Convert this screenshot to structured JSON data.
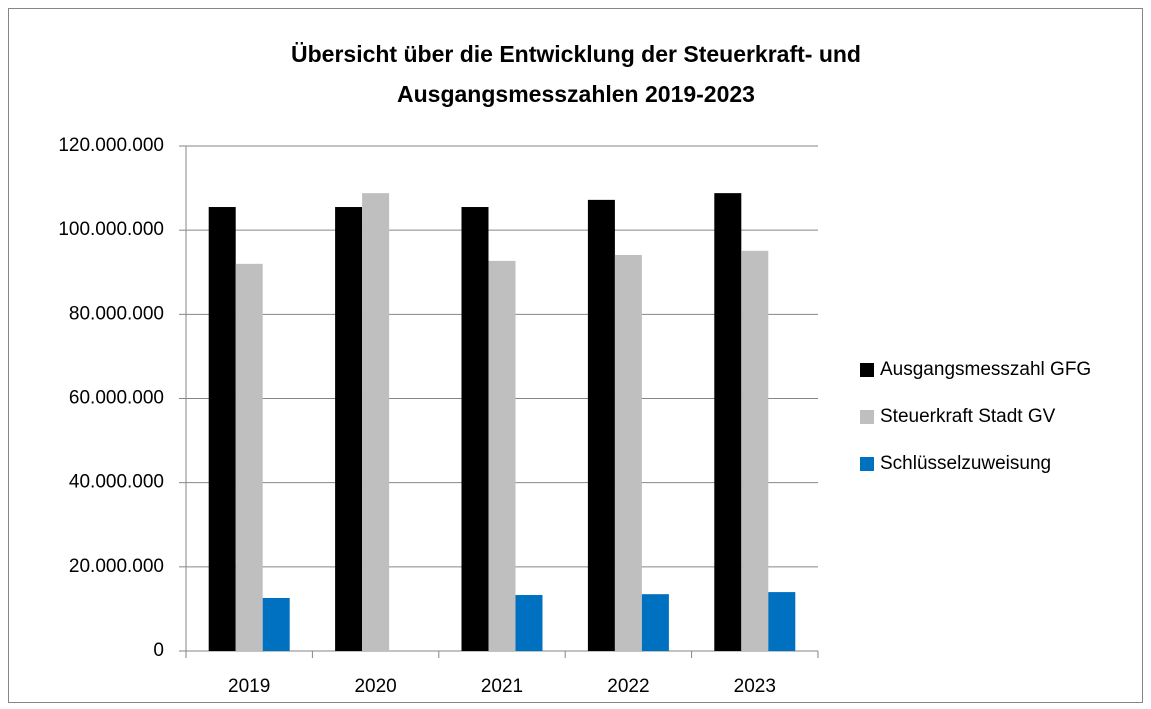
{
  "chart_data": {
    "type": "bar",
    "title": [
      "Übersicht über die Entwicklung der Steuerkraft- und",
      "Ausgangsmesszahlen 2019-2023"
    ],
    "categories": [
      "2019",
      "2020",
      "2021",
      "2022",
      "2023"
    ],
    "series": [
      {
        "name": "Ausgangsmesszahl GFG",
        "color": "#000000",
        "values": [
          105500000,
          105500000,
          105500000,
          107200000,
          108800000
        ]
      },
      {
        "name": "Steuerkraft Stadt GV",
        "color": "#bfbfbf",
        "values": [
          92000000,
          108800000,
          92700000,
          94100000,
          95100000
        ]
      },
      {
        "name": "Schlüsselzuweisung",
        "color": "#0070c0",
        "values": [
          12600000,
          0,
          13300000,
          13500000,
          14000000
        ]
      }
    ],
    "ylim": [
      0,
      120000000
    ],
    "yticks": [
      0,
      {
        "value": 20000000,
        "label": "20.000.000"
      },
      {
        "value": 40000000,
        "label": "40.000.000"
      },
      {
        "value": 60000000,
        "label": "60.000.000"
      },
      {
        "value": 80000000,
        "label": "80.000.000"
      },
      {
        "value": 100000000,
        "label": "100.000.000"
      },
      {
        "value": 120000000,
        "label": "120.000.000"
      }
    ],
    "grid": true,
    "legend": "right"
  }
}
